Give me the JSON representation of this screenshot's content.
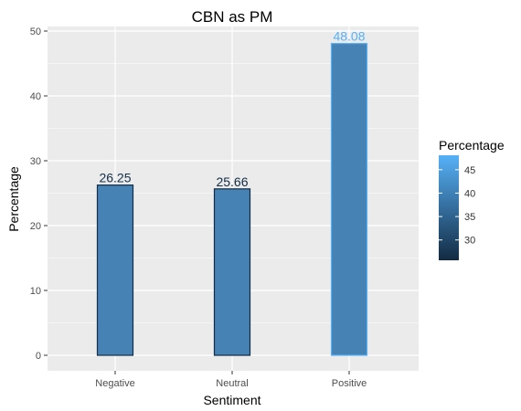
{
  "chart_data": {
    "type": "bar",
    "title": "CBN as PM",
    "xlabel": "Sentiment",
    "ylabel": "Percentage",
    "categories": [
      "Negative",
      "Neutral",
      "Positive"
    ],
    "values": [
      26.25,
      25.66,
      48.08
    ],
    "value_labels": [
      "26.25",
      "25.66",
      "48.08"
    ],
    "ylim": [
      0,
      50
    ],
    "yticks": [
      0,
      10,
      20,
      30,
      40,
      50
    ],
    "grid": true,
    "legend": {
      "title": "Percentage",
      "position": "right",
      "ticks": [
        30,
        35,
        40,
        45
      ],
      "range": [
        25.66,
        48.08
      ],
      "color_low": "#132b43",
      "color_high": "#56b1f7"
    },
    "colors": {
      "panel_background": "#ebebeb",
      "grid": "#ffffff",
      "bar_fill": "#4682b4"
    }
  }
}
